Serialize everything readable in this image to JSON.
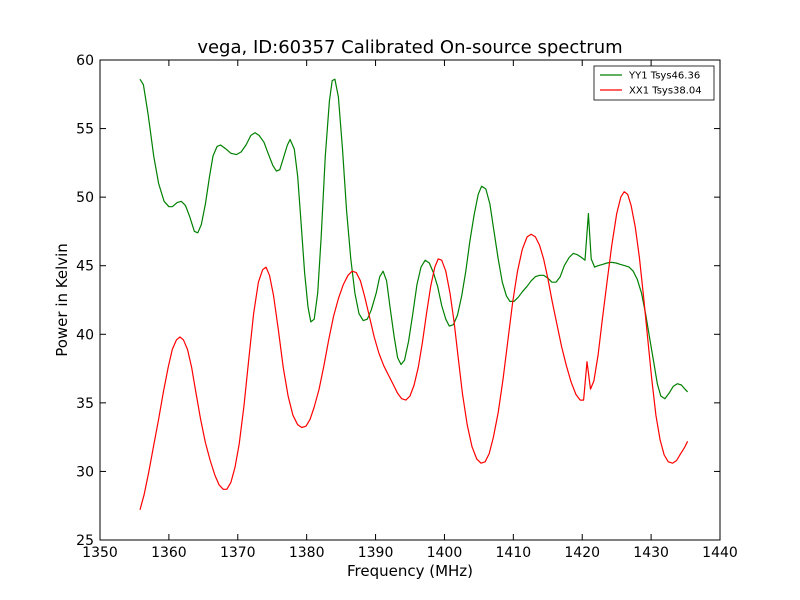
{
  "chart_data": {
    "type": "line",
    "title": "vega, ID:60357 Calibrated On-source spectrum",
    "xlabel": "Frequency (MHz)",
    "ylabel": "Power in Kelvin",
    "xlim": [
      1350,
      1440
    ],
    "ylim": [
      25,
      60
    ],
    "xticks": [
      1350,
      1360,
      1370,
      1380,
      1390,
      1400,
      1410,
      1420,
      1430,
      1440
    ],
    "yticks": [
      25,
      30,
      35,
      40,
      45,
      50,
      55,
      60
    ],
    "grid": false,
    "legend_position": "top-right",
    "series": [
      {
        "name": "YY1 Tsys46.36",
        "color": "#008000",
        "points": [
          [
            1355.8,
            58.6
          ],
          [
            1356.3,
            58.2
          ],
          [
            1357.0,
            56.0
          ],
          [
            1357.8,
            53.0
          ],
          [
            1358.5,
            51.0
          ],
          [
            1359.3,
            49.7
          ],
          [
            1360.0,
            49.3
          ],
          [
            1360.5,
            49.3
          ],
          [
            1361.2,
            49.6
          ],
          [
            1361.8,
            49.7
          ],
          [
            1362.4,
            49.4
          ],
          [
            1363.0,
            48.6
          ],
          [
            1363.7,
            47.5
          ],
          [
            1364.2,
            47.4
          ],
          [
            1364.7,
            48.0
          ],
          [
            1365.3,
            49.5
          ],
          [
            1365.9,
            51.5
          ],
          [
            1366.4,
            53.0
          ],
          [
            1367.0,
            53.7
          ],
          [
            1367.5,
            53.8
          ],
          [
            1368.3,
            53.5
          ],
          [
            1369.0,
            53.2
          ],
          [
            1369.8,
            53.1
          ],
          [
            1370.5,
            53.3
          ],
          [
            1371.2,
            53.8
          ],
          [
            1371.9,
            54.5
          ],
          [
            1372.5,
            54.7
          ],
          [
            1373.1,
            54.5
          ],
          [
            1373.8,
            54.0
          ],
          [
            1374.4,
            53.2
          ],
          [
            1375.1,
            52.3
          ],
          [
            1375.6,
            51.9
          ],
          [
            1376.1,
            52.0
          ],
          [
            1376.6,
            52.8
          ],
          [
            1377.2,
            53.8
          ],
          [
            1377.6,
            54.2
          ],
          [
            1378.2,
            53.5
          ],
          [
            1378.7,
            51.5
          ],
          [
            1379.2,
            48.0
          ],
          [
            1379.7,
            44.5
          ],
          [
            1380.2,
            42.0
          ],
          [
            1380.6,
            40.9
          ],
          [
            1381.1,
            41.1
          ],
          [
            1381.6,
            43.0
          ],
          [
            1382.1,
            47.0
          ],
          [
            1382.7,
            53.0
          ],
          [
            1383.3,
            57.0
          ],
          [
            1383.7,
            58.5
          ],
          [
            1384.1,
            58.6
          ],
          [
            1384.6,
            57.3
          ],
          [
            1385.2,
            53.5
          ],
          [
            1385.8,
            49.0
          ],
          [
            1386.4,
            45.5
          ],
          [
            1387.0,
            43.0
          ],
          [
            1387.6,
            41.5
          ],
          [
            1388.2,
            41.0
          ],
          [
            1388.8,
            41.1
          ],
          [
            1389.4,
            41.8
          ],
          [
            1390.1,
            43.0
          ],
          [
            1390.6,
            44.2
          ],
          [
            1391.1,
            44.6
          ],
          [
            1391.6,
            43.9
          ],
          [
            1392.1,
            42.0
          ],
          [
            1392.7,
            39.8
          ],
          [
            1393.2,
            38.3
          ],
          [
            1393.7,
            37.8
          ],
          [
            1394.2,
            38.1
          ],
          [
            1394.8,
            39.5
          ],
          [
            1395.4,
            41.5
          ],
          [
            1396.0,
            43.6
          ],
          [
            1396.6,
            44.9
          ],
          [
            1397.2,
            45.4
          ],
          [
            1397.8,
            45.2
          ],
          [
            1398.4,
            44.5
          ],
          [
            1399.0,
            43.5
          ],
          [
            1399.6,
            42.1
          ],
          [
            1400.2,
            41.1
          ],
          [
            1400.7,
            40.6
          ],
          [
            1401.3,
            40.7
          ],
          [
            1401.9,
            41.4
          ],
          [
            1402.5,
            42.8
          ],
          [
            1403.1,
            44.6
          ],
          [
            1403.7,
            46.8
          ],
          [
            1404.3,
            48.7
          ],
          [
            1404.9,
            50.2
          ],
          [
            1405.4,
            50.8
          ],
          [
            1406.0,
            50.6
          ],
          [
            1406.6,
            49.5
          ],
          [
            1407.2,
            47.5
          ],
          [
            1407.8,
            45.5
          ],
          [
            1408.4,
            43.8
          ],
          [
            1409.0,
            42.8
          ],
          [
            1409.5,
            42.4
          ],
          [
            1410.1,
            42.4
          ],
          [
            1410.7,
            42.7
          ],
          [
            1411.3,
            43.1
          ],
          [
            1412.0,
            43.5
          ],
          [
            1412.6,
            43.9
          ],
          [
            1413.2,
            44.2
          ],
          [
            1413.8,
            44.3
          ],
          [
            1414.4,
            44.3
          ],
          [
            1415.0,
            44.1
          ],
          [
            1415.6,
            43.8
          ],
          [
            1416.2,
            43.8
          ],
          [
            1416.8,
            44.2
          ],
          [
            1417.4,
            45.0
          ],
          [
            1418.1,
            45.6
          ],
          [
            1418.7,
            45.9
          ],
          [
            1419.3,
            45.8
          ],
          [
            1419.9,
            45.6
          ],
          [
            1420.4,
            45.4
          ],
          [
            1420.9,
            48.8
          ],
          [
            1421.3,
            45.5
          ],
          [
            1421.8,
            44.9
          ],
          [
            1422.3,
            45.0
          ],
          [
            1423.0,
            45.1
          ],
          [
            1423.6,
            45.2
          ],
          [
            1424.2,
            45.25
          ],
          [
            1424.9,
            45.2
          ],
          [
            1425.5,
            45.1
          ],
          [
            1426.2,
            45.0
          ],
          [
            1426.8,
            44.9
          ],
          [
            1427.4,
            44.6
          ],
          [
            1428.0,
            44.0
          ],
          [
            1428.6,
            43.0
          ],
          [
            1429.2,
            41.5
          ],
          [
            1429.8,
            39.7
          ],
          [
            1430.4,
            37.9
          ],
          [
            1430.9,
            36.4
          ],
          [
            1431.4,
            35.5
          ],
          [
            1432.0,
            35.3
          ],
          [
            1432.6,
            35.7
          ],
          [
            1433.2,
            36.2
          ],
          [
            1433.8,
            36.4
          ],
          [
            1434.4,
            36.3
          ],
          [
            1434.9,
            36.0
          ],
          [
            1435.3,
            35.8
          ]
        ]
      },
      {
        "name": "XX1 Tsys38.04",
        "color": "#ff0000",
        "points": [
          [
            1355.8,
            27.2
          ],
          [
            1356.4,
            28.3
          ],
          [
            1357.1,
            30.0
          ],
          [
            1357.8,
            31.9
          ],
          [
            1358.5,
            33.8
          ],
          [
            1359.2,
            35.8
          ],
          [
            1359.9,
            37.6
          ],
          [
            1360.5,
            38.9
          ],
          [
            1361.1,
            39.6
          ],
          [
            1361.6,
            39.8
          ],
          [
            1362.1,
            39.6
          ],
          [
            1362.7,
            38.9
          ],
          [
            1363.3,
            37.6
          ],
          [
            1363.9,
            35.8
          ],
          [
            1364.6,
            33.8
          ],
          [
            1365.3,
            32.1
          ],
          [
            1366.0,
            30.8
          ],
          [
            1366.7,
            29.7
          ],
          [
            1367.3,
            29.0
          ],
          [
            1367.9,
            28.7
          ],
          [
            1368.4,
            28.7
          ],
          [
            1369.0,
            29.2
          ],
          [
            1369.6,
            30.3
          ],
          [
            1370.2,
            32.0
          ],
          [
            1370.9,
            34.8
          ],
          [
            1371.6,
            38.2
          ],
          [
            1372.3,
            41.5
          ],
          [
            1373.0,
            43.8
          ],
          [
            1373.6,
            44.7
          ],
          [
            1374.1,
            44.9
          ],
          [
            1374.6,
            44.3
          ],
          [
            1375.2,
            42.8
          ],
          [
            1375.9,
            40.3
          ],
          [
            1376.6,
            37.6
          ],
          [
            1377.3,
            35.5
          ],
          [
            1378.0,
            34.1
          ],
          [
            1378.7,
            33.4
          ],
          [
            1379.3,
            33.2
          ],
          [
            1379.9,
            33.3
          ],
          [
            1380.5,
            33.8
          ],
          [
            1381.1,
            34.7
          ],
          [
            1381.8,
            36.0
          ],
          [
            1382.5,
            37.7
          ],
          [
            1383.2,
            39.6
          ],
          [
            1383.9,
            41.3
          ],
          [
            1384.6,
            42.6
          ],
          [
            1385.3,
            43.6
          ],
          [
            1386.0,
            44.3
          ],
          [
            1386.6,
            44.6
          ],
          [
            1387.2,
            44.5
          ],
          [
            1387.8,
            43.9
          ],
          [
            1388.4,
            42.8
          ],
          [
            1389.1,
            41.3
          ],
          [
            1389.8,
            39.8
          ],
          [
            1390.5,
            38.6
          ],
          [
            1391.2,
            37.7
          ],
          [
            1391.9,
            37.0
          ],
          [
            1392.6,
            36.3
          ],
          [
            1393.2,
            35.7
          ],
          [
            1393.8,
            35.3
          ],
          [
            1394.4,
            35.2
          ],
          [
            1395.0,
            35.5
          ],
          [
            1395.6,
            36.3
          ],
          [
            1396.2,
            37.6
          ],
          [
            1396.8,
            39.4
          ],
          [
            1397.4,
            41.5
          ],
          [
            1398.0,
            43.5
          ],
          [
            1398.6,
            44.9
          ],
          [
            1399.1,
            45.5
          ],
          [
            1399.6,
            45.4
          ],
          [
            1400.2,
            44.6
          ],
          [
            1400.8,
            43.0
          ],
          [
            1401.4,
            40.9
          ],
          [
            1402.0,
            38.3
          ],
          [
            1402.6,
            35.7
          ],
          [
            1403.3,
            33.4
          ],
          [
            1404.0,
            31.8
          ],
          [
            1404.7,
            30.9
          ],
          [
            1405.3,
            30.6
          ],
          [
            1405.9,
            30.7
          ],
          [
            1406.5,
            31.3
          ],
          [
            1407.1,
            32.5
          ],
          [
            1407.8,
            34.3
          ],
          [
            1408.5,
            36.7
          ],
          [
            1409.2,
            39.5
          ],
          [
            1409.9,
            42.3
          ],
          [
            1410.6,
            44.6
          ],
          [
            1411.3,
            46.2
          ],
          [
            1412.0,
            47.1
          ],
          [
            1412.6,
            47.3
          ],
          [
            1413.2,
            47.1
          ],
          [
            1413.8,
            46.5
          ],
          [
            1414.4,
            45.5
          ],
          [
            1415.0,
            44.1
          ],
          [
            1415.6,
            42.5
          ],
          [
            1416.3,
            40.8
          ],
          [
            1417.0,
            39.1
          ],
          [
            1417.7,
            37.7
          ],
          [
            1418.4,
            36.5
          ],
          [
            1419.1,
            35.6
          ],
          [
            1419.7,
            35.2
          ],
          [
            1420.2,
            35.2
          ],
          [
            1420.7,
            38.0
          ],
          [
            1421.2,
            36.0
          ],
          [
            1421.7,
            36.6
          ],
          [
            1422.3,
            38.5
          ],
          [
            1422.9,
            41.0
          ],
          [
            1423.6,
            43.8
          ],
          [
            1424.3,
            46.5
          ],
          [
            1425.0,
            48.8
          ],
          [
            1425.6,
            50.0
          ],
          [
            1426.1,
            50.4
          ],
          [
            1426.6,
            50.2
          ],
          [
            1427.1,
            49.4
          ],
          [
            1427.7,
            47.8
          ],
          [
            1428.3,
            45.6
          ],
          [
            1428.9,
            42.8
          ],
          [
            1429.5,
            39.7
          ],
          [
            1430.1,
            36.7
          ],
          [
            1430.7,
            34.1
          ],
          [
            1431.3,
            32.3
          ],
          [
            1431.9,
            31.2
          ],
          [
            1432.5,
            30.7
          ],
          [
            1433.1,
            30.6
          ],
          [
            1433.7,
            30.8
          ],
          [
            1434.3,
            31.3
          ],
          [
            1434.8,
            31.7
          ],
          [
            1435.3,
            32.2
          ]
        ]
      }
    ]
  }
}
